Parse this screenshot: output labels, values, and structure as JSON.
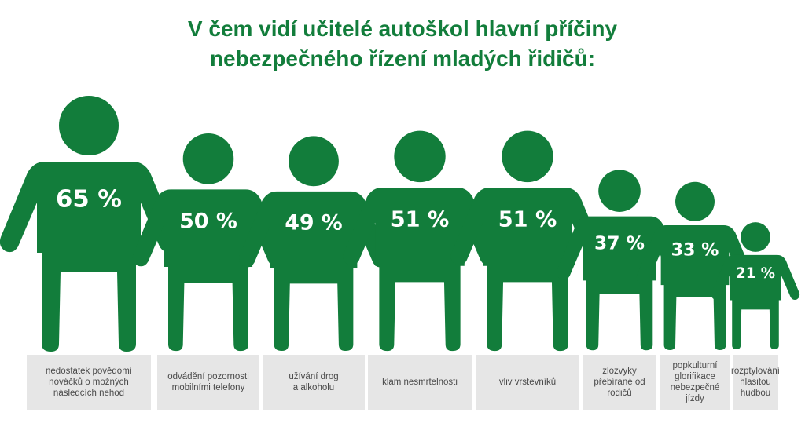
{
  "title_lines": [
    "V čem vidí učitelé autoškol hlavní příčiny",
    "nebezpečného řízení mladých řidičů:"
  ],
  "colors": {
    "accent": "#127d3b",
    "label_bg": "#e6e6e6",
    "label_text": "#4a4a4a"
  },
  "chart_data": {
    "type": "bar",
    "title": "V čem vidí učitelé autoškol hlavní příčiny nebezpečného řízení mladých řidičů:",
    "unit": "%",
    "categories": [
      "nedostatek povědomí nováčků o možných následcích nehod",
      "odvádění pozornosti mobilními telefony",
      "užívání drog a alkoholu",
      "klam nesmrtelnosti",
      "vliv vrstevníků",
      "zlozvyky přebírané od rodičů",
      "popkulturní glorifikace nebezpečné jízdy",
      "rozptylování hlasitou hudbou"
    ],
    "values": [
      65,
      50,
      49,
      51,
      51,
      37,
      33,
      21
    ],
    "value_labels": [
      "65 %",
      "50 %",
      "49 %",
      "51 %",
      "51 %",
      "37 %",
      "33 %",
      "21 %"
    ],
    "label_lines": [
      [
        "nedostatek povědomí",
        "nováčků o možných",
        "následcích nehod"
      ],
      [
        "odvádění pozornosti",
        "mobilními telefony"
      ],
      [
        "užívání drog",
        "a alkoholu"
      ],
      [
        "klam nesmrtelnosti"
      ],
      [
        "vliv vrstevníků"
      ],
      [
        "zlozvyky",
        "přebírané od",
        "rodičů"
      ],
      [
        "popkulturní",
        "glorifikace",
        "nebezpečné",
        "jízdy"
      ],
      [
        "rozptylování",
        "hlasitou",
        "hudbou"
      ]
    ]
  }
}
